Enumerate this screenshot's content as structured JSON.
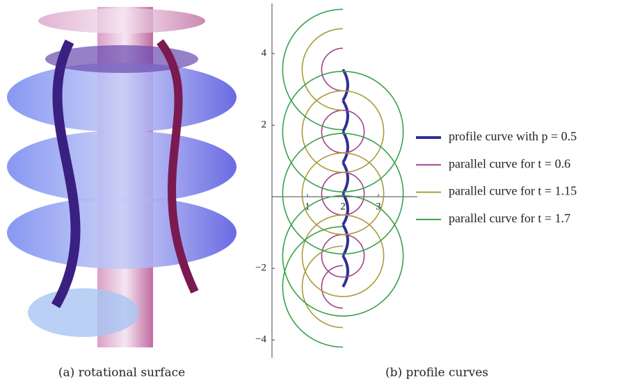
{
  "chart_data": {
    "type": "line",
    "captions": [
      "(a) rotational surface",
      "(b) profile curves"
    ],
    "xlim": [
      0,
      3.6
    ],
    "ylim": [
      -4.5,
      5.4
    ],
    "xticks": [
      1,
      2,
      3
    ],
    "yticks": [
      {
        "value": -4,
        "label": "−4"
      },
      {
        "value": -2,
        "label": "−2"
      },
      2,
      4
    ],
    "series": [
      {
        "name": "profile curve with p = 0.5",
        "color": "#2e3192",
        "parameter": 0
      },
      {
        "name": "parallel curve for t = 0.6",
        "color": "#a0428a",
        "parameter": 0.6
      },
      {
        "name": "parallel curve for t = 1.15",
        "color": "#a89a3c",
        "parameter": 1.15
      },
      {
        "name": "parallel curve for t = 1.7",
        "color": "#3aa04a",
        "parameter": 1.7
      }
    ]
  }
}
